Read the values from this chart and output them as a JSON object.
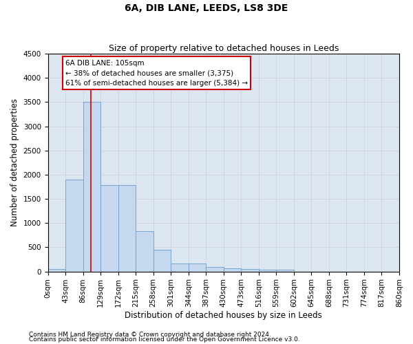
{
  "title": "6A, DIB LANE, LEEDS, LS8 3DE",
  "subtitle": "Size of property relative to detached houses in Leeds",
  "xlabel": "Distribution of detached houses by size in Leeds",
  "ylabel": "Number of detached properties",
  "footnote1": "Contains HM Land Registry data © Crown copyright and database right 2024.",
  "footnote2": "Contains public sector information licensed under the Open Government Licence v3.0.",
  "annotation_line1": "6A DIB LANE: 105sqm",
  "annotation_line2": "← 38% of detached houses are smaller (3,375)",
  "annotation_line3": "61% of semi-detached houses are larger (5,384) →",
  "property_size": 105,
  "bin_width": 43,
  "bins": [
    0,
    43,
    86,
    129,
    172,
    215,
    258,
    301,
    344,
    387,
    430,
    473,
    516,
    559,
    602,
    645,
    688,
    731,
    774,
    817,
    860
  ],
  "bar_values": [
    50,
    1900,
    3500,
    1780,
    1780,
    840,
    450,
    160,
    160,
    90,
    70,
    55,
    40,
    30,
    0,
    0,
    0,
    0,
    0,
    0
  ],
  "bar_color": "#c5d8ef",
  "bar_edge_color": "#6b9dc8",
  "vline_color": "#cc0000",
  "vline_x": 105,
  "annotation_box_color": "#cc0000",
  "ylim": [
    0,
    4500
  ],
  "yticks": [
    0,
    500,
    1000,
    1500,
    2000,
    2500,
    3000,
    3500,
    4000,
    4500
  ],
  "grid_color": "#c8d0dc",
  "bg_color": "#dce6f0",
  "title_fontsize": 10,
  "subtitle_fontsize": 9,
  "axis_label_fontsize": 8.5,
  "tick_fontsize": 7.5,
  "annotation_fontsize": 7.5,
  "footnote_fontsize": 6.5
}
